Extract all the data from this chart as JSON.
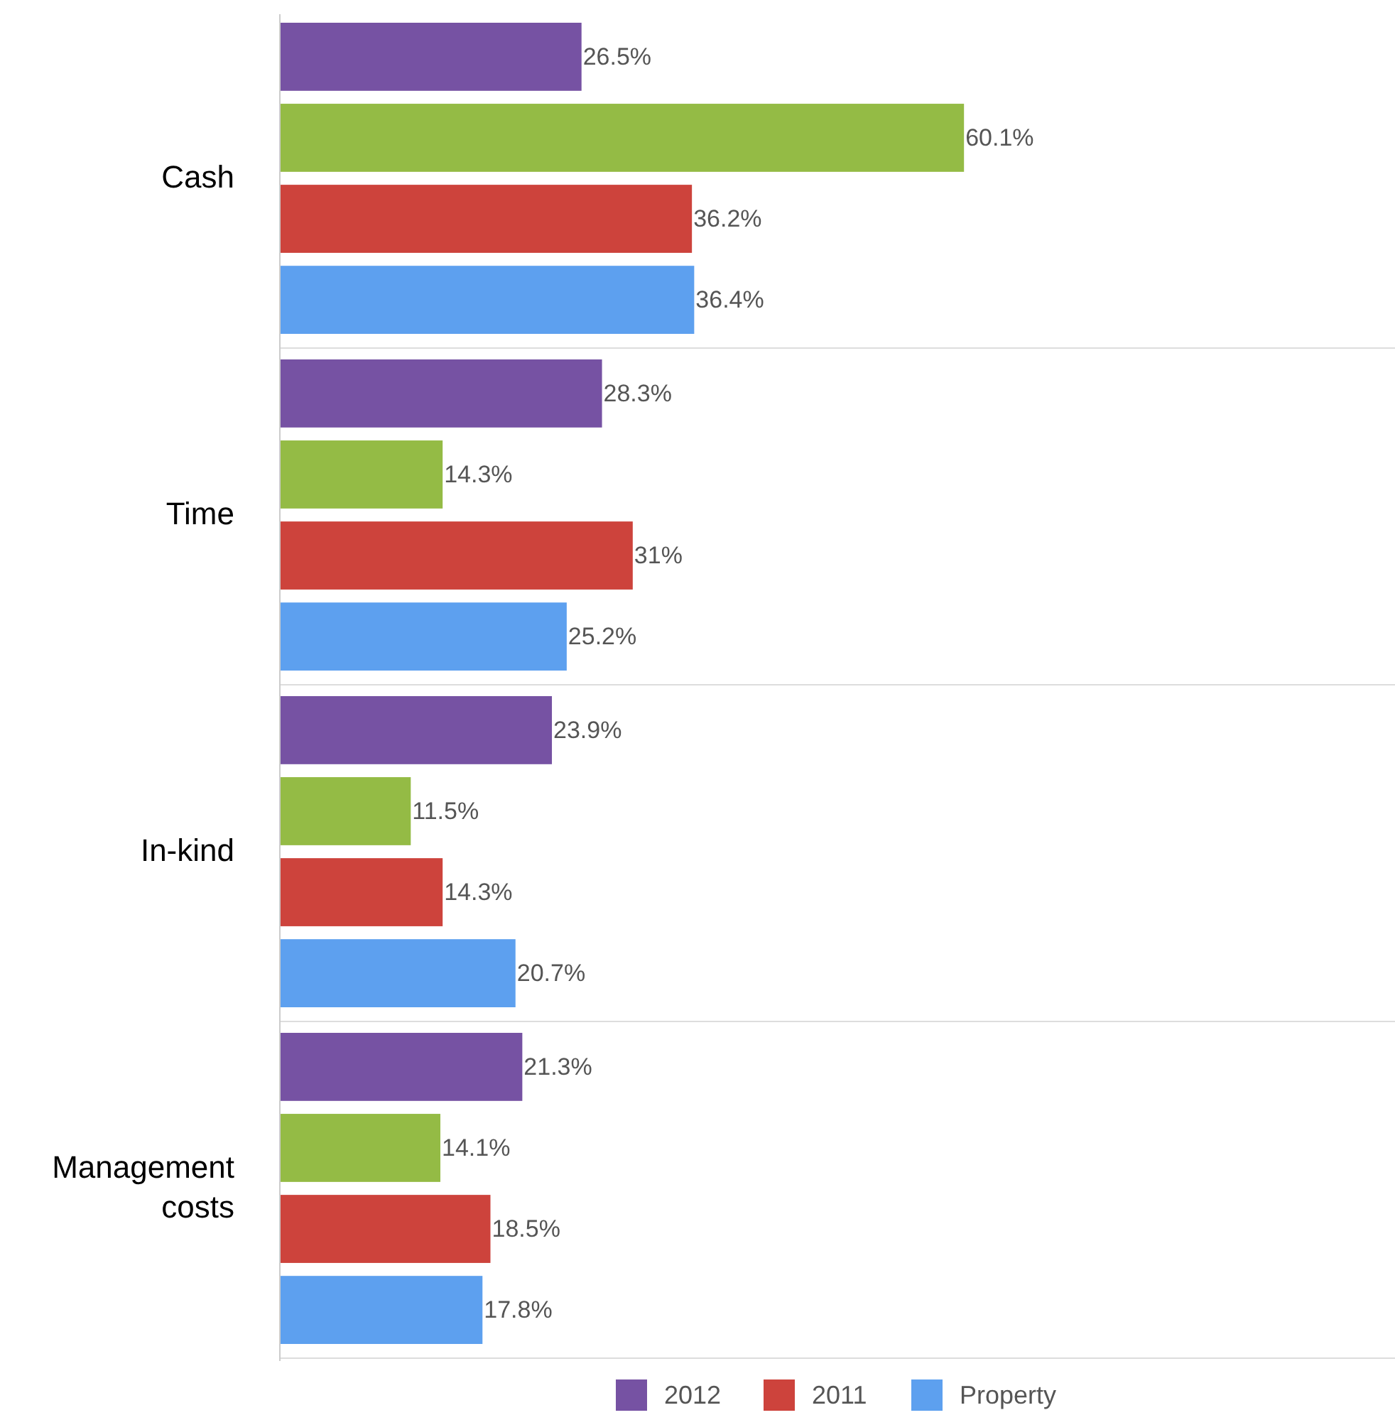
{
  "chart_data": {
    "type": "bar",
    "orientation": "horizontal",
    "categories": [
      "Cash",
      "Time",
      "In-kind",
      "Management costs"
    ],
    "series": [
      {
        "name": "2012",
        "color": "#7652a3",
        "values": [
          26.5,
          28.3,
          23.9,
          21.3
        ],
        "value_labels": [
          "26.5%",
          "28.3%",
          "23.9%",
          "21.3%"
        ]
      },
      {
        "color": "#94bb45",
        "values": [
          60.1,
          14.3,
          11.5,
          14.1
        ],
        "value_labels": [
          "60.1%",
          "14.3%",
          "11.5%",
          "14.1%"
        ]
      },
      {
        "name": "2011",
        "color": "#cd433c",
        "values": [
          36.2,
          31,
          14.3,
          18.5
        ],
        "value_labels": [
          "36.2%",
          "31%",
          "14.3%",
          "18.5%"
        ]
      },
      {
        "name": "Property",
        "color": "#5da0ef",
        "values": [
          36.4,
          25.2,
          20.7,
          17.8
        ],
        "value_labels": [
          "36.4%",
          "25.2%",
          "20.7%",
          "17.8%"
        ]
      }
    ],
    "legend": "bottom"
  }
}
